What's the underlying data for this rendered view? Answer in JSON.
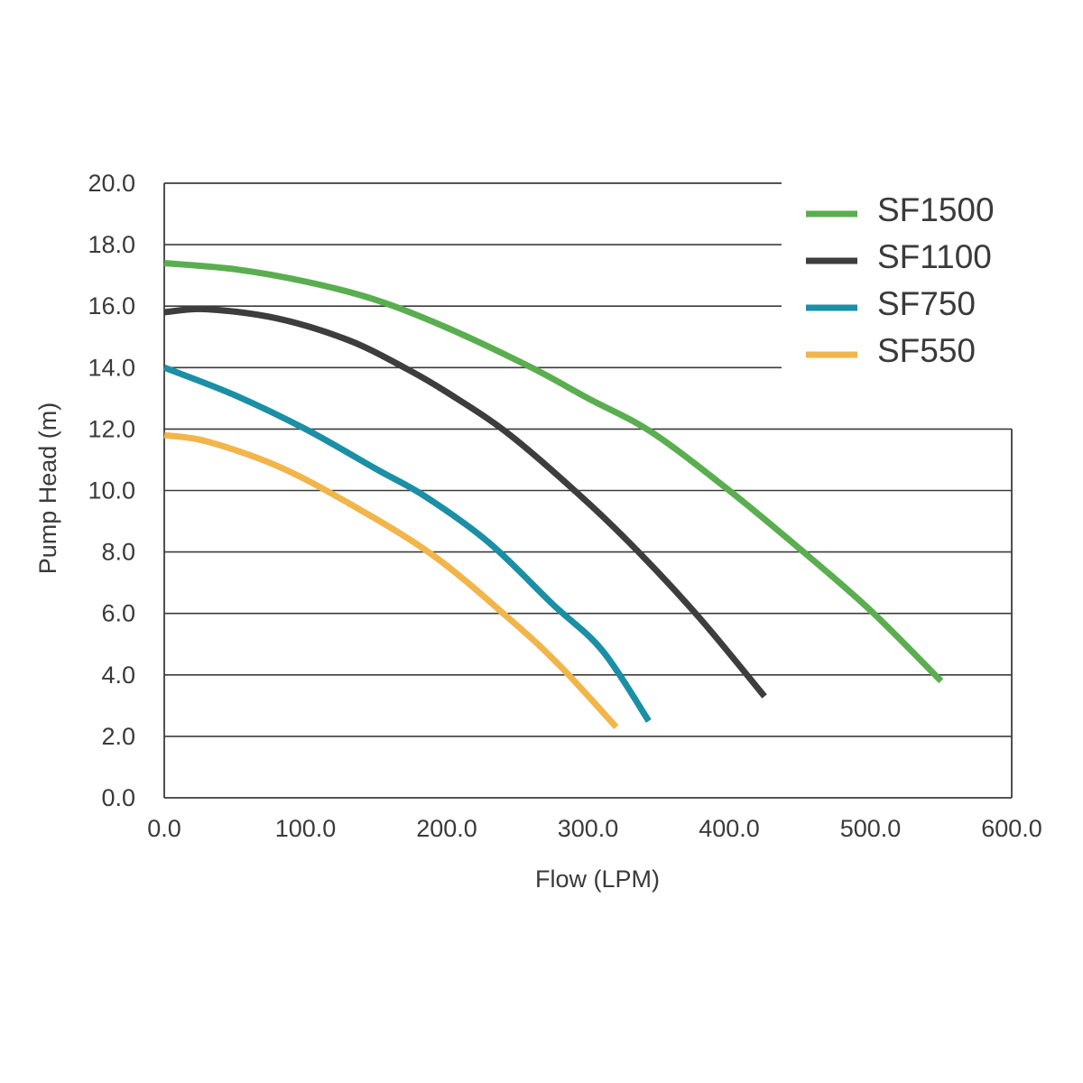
{
  "chart_data": {
    "type": "line",
    "title": "",
    "xlabel": "Flow (LPM)",
    "ylabel": "Pump Head (m)",
    "xlim": [
      0,
      600
    ],
    "ylim": [
      0,
      20
    ],
    "x_ticks": [
      "0.0",
      "100.0",
      "200.0",
      "300.0",
      "400.0",
      "500.0",
      "600.0"
    ],
    "y_ticks": [
      "0.0",
      "2.0",
      "4.0",
      "6.0",
      "8.0",
      "10.0",
      "12.0",
      "14.0",
      "16.0",
      "18.0",
      "20.0"
    ],
    "grid": "horizontal",
    "legend_position": "top-right",
    "series": [
      {
        "name": "SF1500",
        "color": "#5aae4f",
        "points": [
          [
            0,
            17.4
          ],
          [
            50,
            17.2
          ],
          [
            100,
            16.8
          ],
          [
            150,
            16.2
          ],
          [
            200,
            15.3
          ],
          [
            260,
            14.0
          ],
          [
            300,
            13.0
          ],
          [
            345,
            11.9
          ],
          [
            400,
            10.0
          ],
          [
            450,
            8.1
          ],
          [
            500,
            6.1
          ],
          [
            550,
            3.8
          ]
        ]
      },
      {
        "name": "SF1100",
        "color": "#3d3d3d",
        "points": [
          [
            0,
            15.8
          ],
          [
            30,
            15.9
          ],
          [
            80,
            15.6
          ],
          [
            130,
            14.9
          ],
          [
            170,
            14.0
          ],
          [
            200,
            13.2
          ],
          [
            245,
            11.8
          ],
          [
            300,
            9.6
          ],
          [
            340,
            7.8
          ],
          [
            380,
            5.8
          ],
          [
            425,
            3.3
          ]
        ]
      },
      {
        "name": "SF750",
        "color": "#1a8fa6",
        "points": [
          [
            0,
            14.0
          ],
          [
            50,
            13.1
          ],
          [
            100,
            12.0
          ],
          [
            150,
            10.7
          ],
          [
            185,
            9.8
          ],
          [
            230,
            8.3
          ],
          [
            275,
            6.3
          ],
          [
            310,
            4.8
          ],
          [
            343,
            2.5
          ]
        ]
      },
      {
        "name": "SF550",
        "color": "#f2b54a",
        "points": [
          [
            0,
            11.8
          ],
          [
            30,
            11.6
          ],
          [
            80,
            10.8
          ],
          [
            130,
            9.6
          ],
          [
            190,
            7.9
          ],
          [
            245,
            5.8
          ],
          [
            280,
            4.3
          ],
          [
            320,
            2.3
          ]
        ]
      }
    ]
  }
}
